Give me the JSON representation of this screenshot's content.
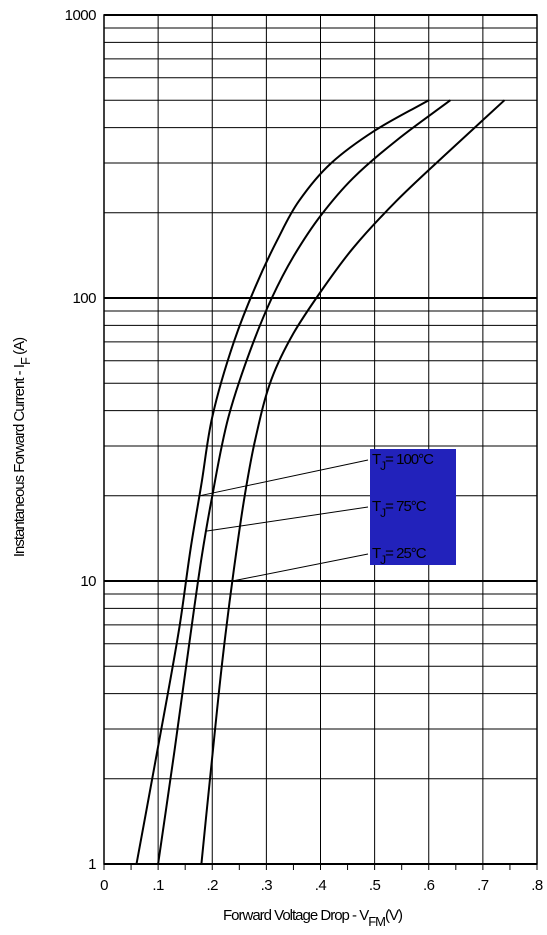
{
  "chart_data": {
    "type": "line",
    "y_scale": "log",
    "grid": true,
    "xlim": [
      0,
      0.8
    ],
    "ylim": [
      1,
      1000
    ],
    "x_ticks": [
      {
        "value": 0,
        "label": "0"
      },
      {
        "value": 0.1,
        "label": ".1"
      },
      {
        "value": 0.2,
        "label": ".2"
      },
      {
        "value": 0.3,
        "label": ".3"
      },
      {
        "value": 0.4,
        "label": ".4"
      },
      {
        "value": 0.5,
        "label": ".5"
      },
      {
        "value": 0.6,
        "label": ".6"
      },
      {
        "value": 0.7,
        "label": ".7"
      },
      {
        "value": 0.8,
        "label": ".8"
      }
    ],
    "y_ticks": [
      {
        "value": 1,
        "label": "1"
      },
      {
        "value": 10,
        "label": "10"
      },
      {
        "value": 100,
        "label": "100"
      },
      {
        "value": 1000,
        "label": "1000"
      }
    ],
    "xlabel": {
      "main": "Forward Voltage Drop - V",
      "sub": "FM",
      "unit": "(V)"
    },
    "ylabel": {
      "main": "Instantaneous Forward Current - I",
      "sub": "F",
      "unit": "(A)"
    },
    "legend_color": "#2222bb",
    "series": [
      {
        "name": {
          "pre": "T",
          "sub": "J",
          "post": "= 100°C"
        },
        "x": [
          0.06,
          0.1,
          0.14,
          0.16,
          0.18,
          0.2,
          0.24,
          0.28,
          0.32,
          0.36,
          0.42,
          0.5,
          0.6
        ],
        "y": [
          1,
          2.6,
          7,
          13,
          22,
          38,
          70,
          110,
          160,
          220,
          300,
          390,
          500
        ]
      },
      {
        "name": {
          "pre": "T",
          "sub": "J",
          "post": "= 75°C"
        },
        "x": [
          0.1,
          0.13,
          0.16,
          0.18,
          0.2,
          0.23,
          0.27,
          0.31,
          0.35,
          0.4,
          0.46,
          0.54,
          0.64
        ],
        "y": [
          1,
          2.5,
          6.5,
          12,
          20,
          38,
          65,
          100,
          140,
          195,
          265,
          360,
          500
        ]
      },
      {
        "name": {
          "pre": "T",
          "sub": "J",
          "post": "= 25°C"
        },
        "x": [
          0.18,
          0.2,
          0.22,
          0.24,
          0.26,
          0.28,
          0.31,
          0.35,
          0.4,
          0.46,
          0.54,
          0.63,
          0.74
        ],
        "y": [
          1,
          2.4,
          5.5,
          11,
          20,
          32,
          52,
          75,
          105,
          150,
          220,
          320,
          500
        ]
      }
    ]
  }
}
